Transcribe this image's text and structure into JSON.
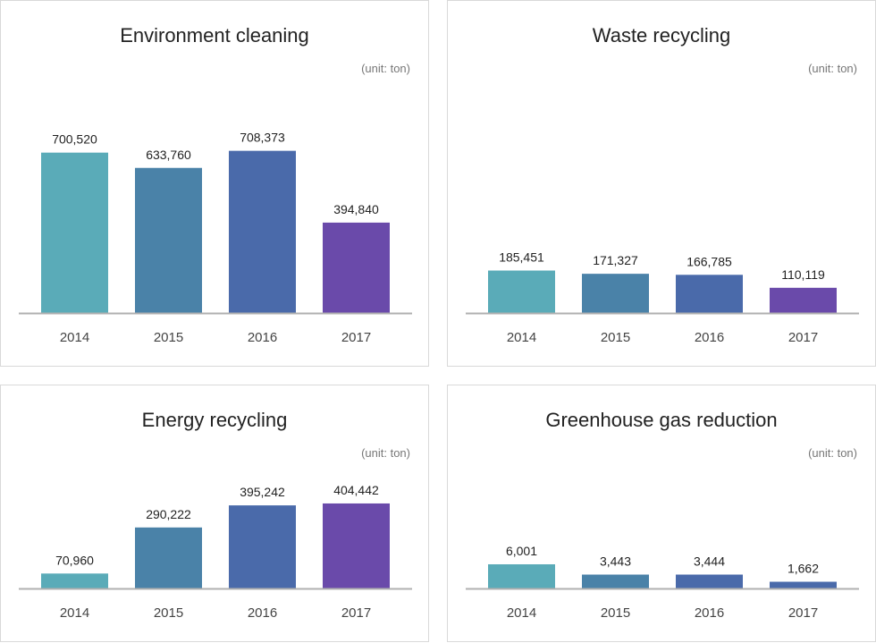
{
  "chart_data": [
    {
      "type": "bar",
      "title": "Environment cleaning",
      "unit": "(unit: ton)",
      "categories": [
        "2014",
        "2015",
        "2016",
        "2017"
      ],
      "values": [
        700520,
        633760,
        708373,
        394840
      ],
      "value_labels": [
        "700,520",
        "633,760",
        "708,373",
        "394,840"
      ],
      "colors": [
        "#5aabb8",
        "#4a82a8",
        "#4a6aaa",
        "#6a4aaa"
      ],
      "grid": false,
      "legend": "none"
    },
    {
      "type": "bar",
      "title": "Waste recycling",
      "unit": "(unit: ton)",
      "categories": [
        "2014",
        "2015",
        "2016",
        "2017"
      ],
      "values": [
        185451,
        171327,
        166785,
        110119
      ],
      "value_labels": [
        "185,451",
        "171,327",
        "166,785",
        "110,119"
      ],
      "colors": [
        "#5aabb8",
        "#4a82a8",
        "#4a6aaa",
        "#6a4aaa"
      ],
      "grid": false,
      "legend": "none"
    },
    {
      "type": "bar",
      "title": "Energy recycling",
      "unit": "(unit: ton)",
      "categories": [
        "2014",
        "2015",
        "2016",
        "2017"
      ],
      "values": [
        70960,
        290222,
        395242,
        404442
      ],
      "value_labels": [
        "70,960",
        "290,222",
        "395,242",
        "404,442"
      ],
      "colors": [
        "#5aabb8",
        "#4a82a8",
        "#4a6aaa",
        "#6a4aaa"
      ],
      "grid": false,
      "legend": "none"
    },
    {
      "type": "bar",
      "title": "Greenhouse gas reduction",
      "unit": "(unit: ton)",
      "categories": [
        "2014",
        "2015",
        "2016",
        "2017"
      ],
      "values": [
        6001,
        3443,
        3444,
        1662
      ],
      "value_labels": [
        "6,001",
        "3,443",
        "3,444",
        "1,662"
      ],
      "colors": [
        "#5aabb8",
        "#4a82a8",
        "#4a6aaa",
        "#4a6aaa"
      ],
      "grid": false,
      "legend": "none"
    }
  ]
}
